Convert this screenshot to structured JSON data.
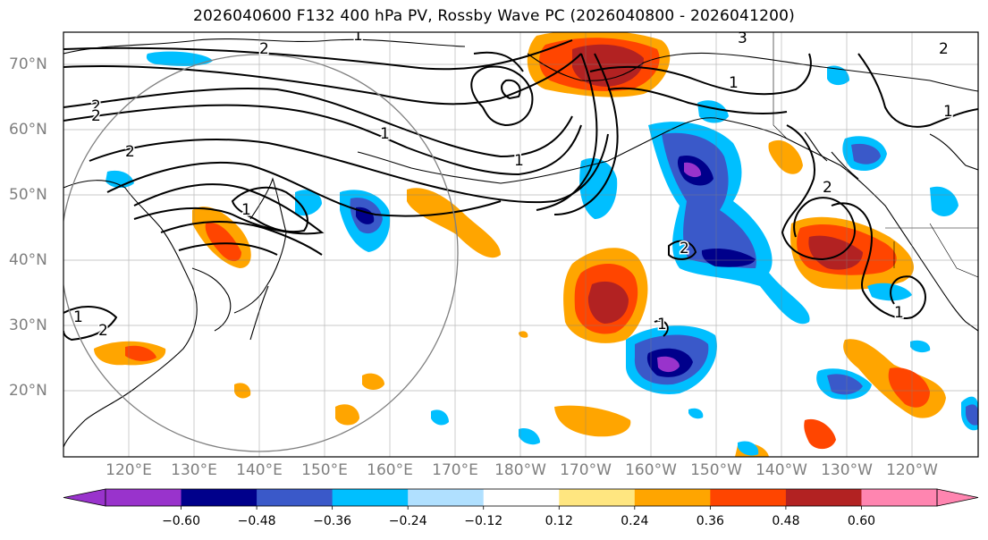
{
  "title": "2026040600 F132 400 hPa PV, Rossby Wave PC (2026040800 - 2026041200)",
  "map": {
    "projection": "plate-carree",
    "lon_range": [
      105,
      245
    ],
    "lat_range": [
      10,
      75
    ],
    "gridlines": true,
    "coastlines": true,
    "country_borders": true,
    "lon_tick_labels": [
      "120°E",
      "130°E",
      "140°E",
      "150°E",
      "160°E",
      "170°E",
      "180°W",
      "170°W",
      "160°W",
      "150°W",
      "140°W",
      "130°W",
      "120°W"
    ],
    "lat_tick_labels": [
      "20°N",
      "30°N",
      "40°N",
      "50°N",
      "60°N",
      "70°N"
    ],
    "pv_contour_labels": [
      "2",
      "1",
      "3",
      "2",
      "2",
      "2",
      "2",
      "1",
      "2",
      "1",
      "1",
      "1",
      "2",
      "2",
      "1",
      "1",
      "1",
      "1"
    ],
    "circle_center": {
      "lon": 140,
      "lat": 35
    },
    "circle_radius_deg": 25
  },
  "colorbar": {
    "extend": "both",
    "tick_labels": [
      "−0.60",
      "−0.48",
      "−0.36",
      "−0.24",
      "−0.12",
      "0.12",
      "0.24",
      "0.36",
      "0.48",
      "0.60"
    ],
    "colors": {
      "under": "#9933cc",
      "lt_-0.60": "#9933cc",
      "m060_m048": "#00008b",
      "m048_m036": "#3a59c9",
      "m036_m024": "#00bfff",
      "m024_m012": "#b0e0ff",
      "m012_012": "#ffffff",
      "p012_p024": "#ffe680",
      "p024_p036": "#ffa500",
      "p036_p048": "#ff4500",
      "p048_p060": "#b22222",
      "over": "#ff85b0"
    }
  }
}
